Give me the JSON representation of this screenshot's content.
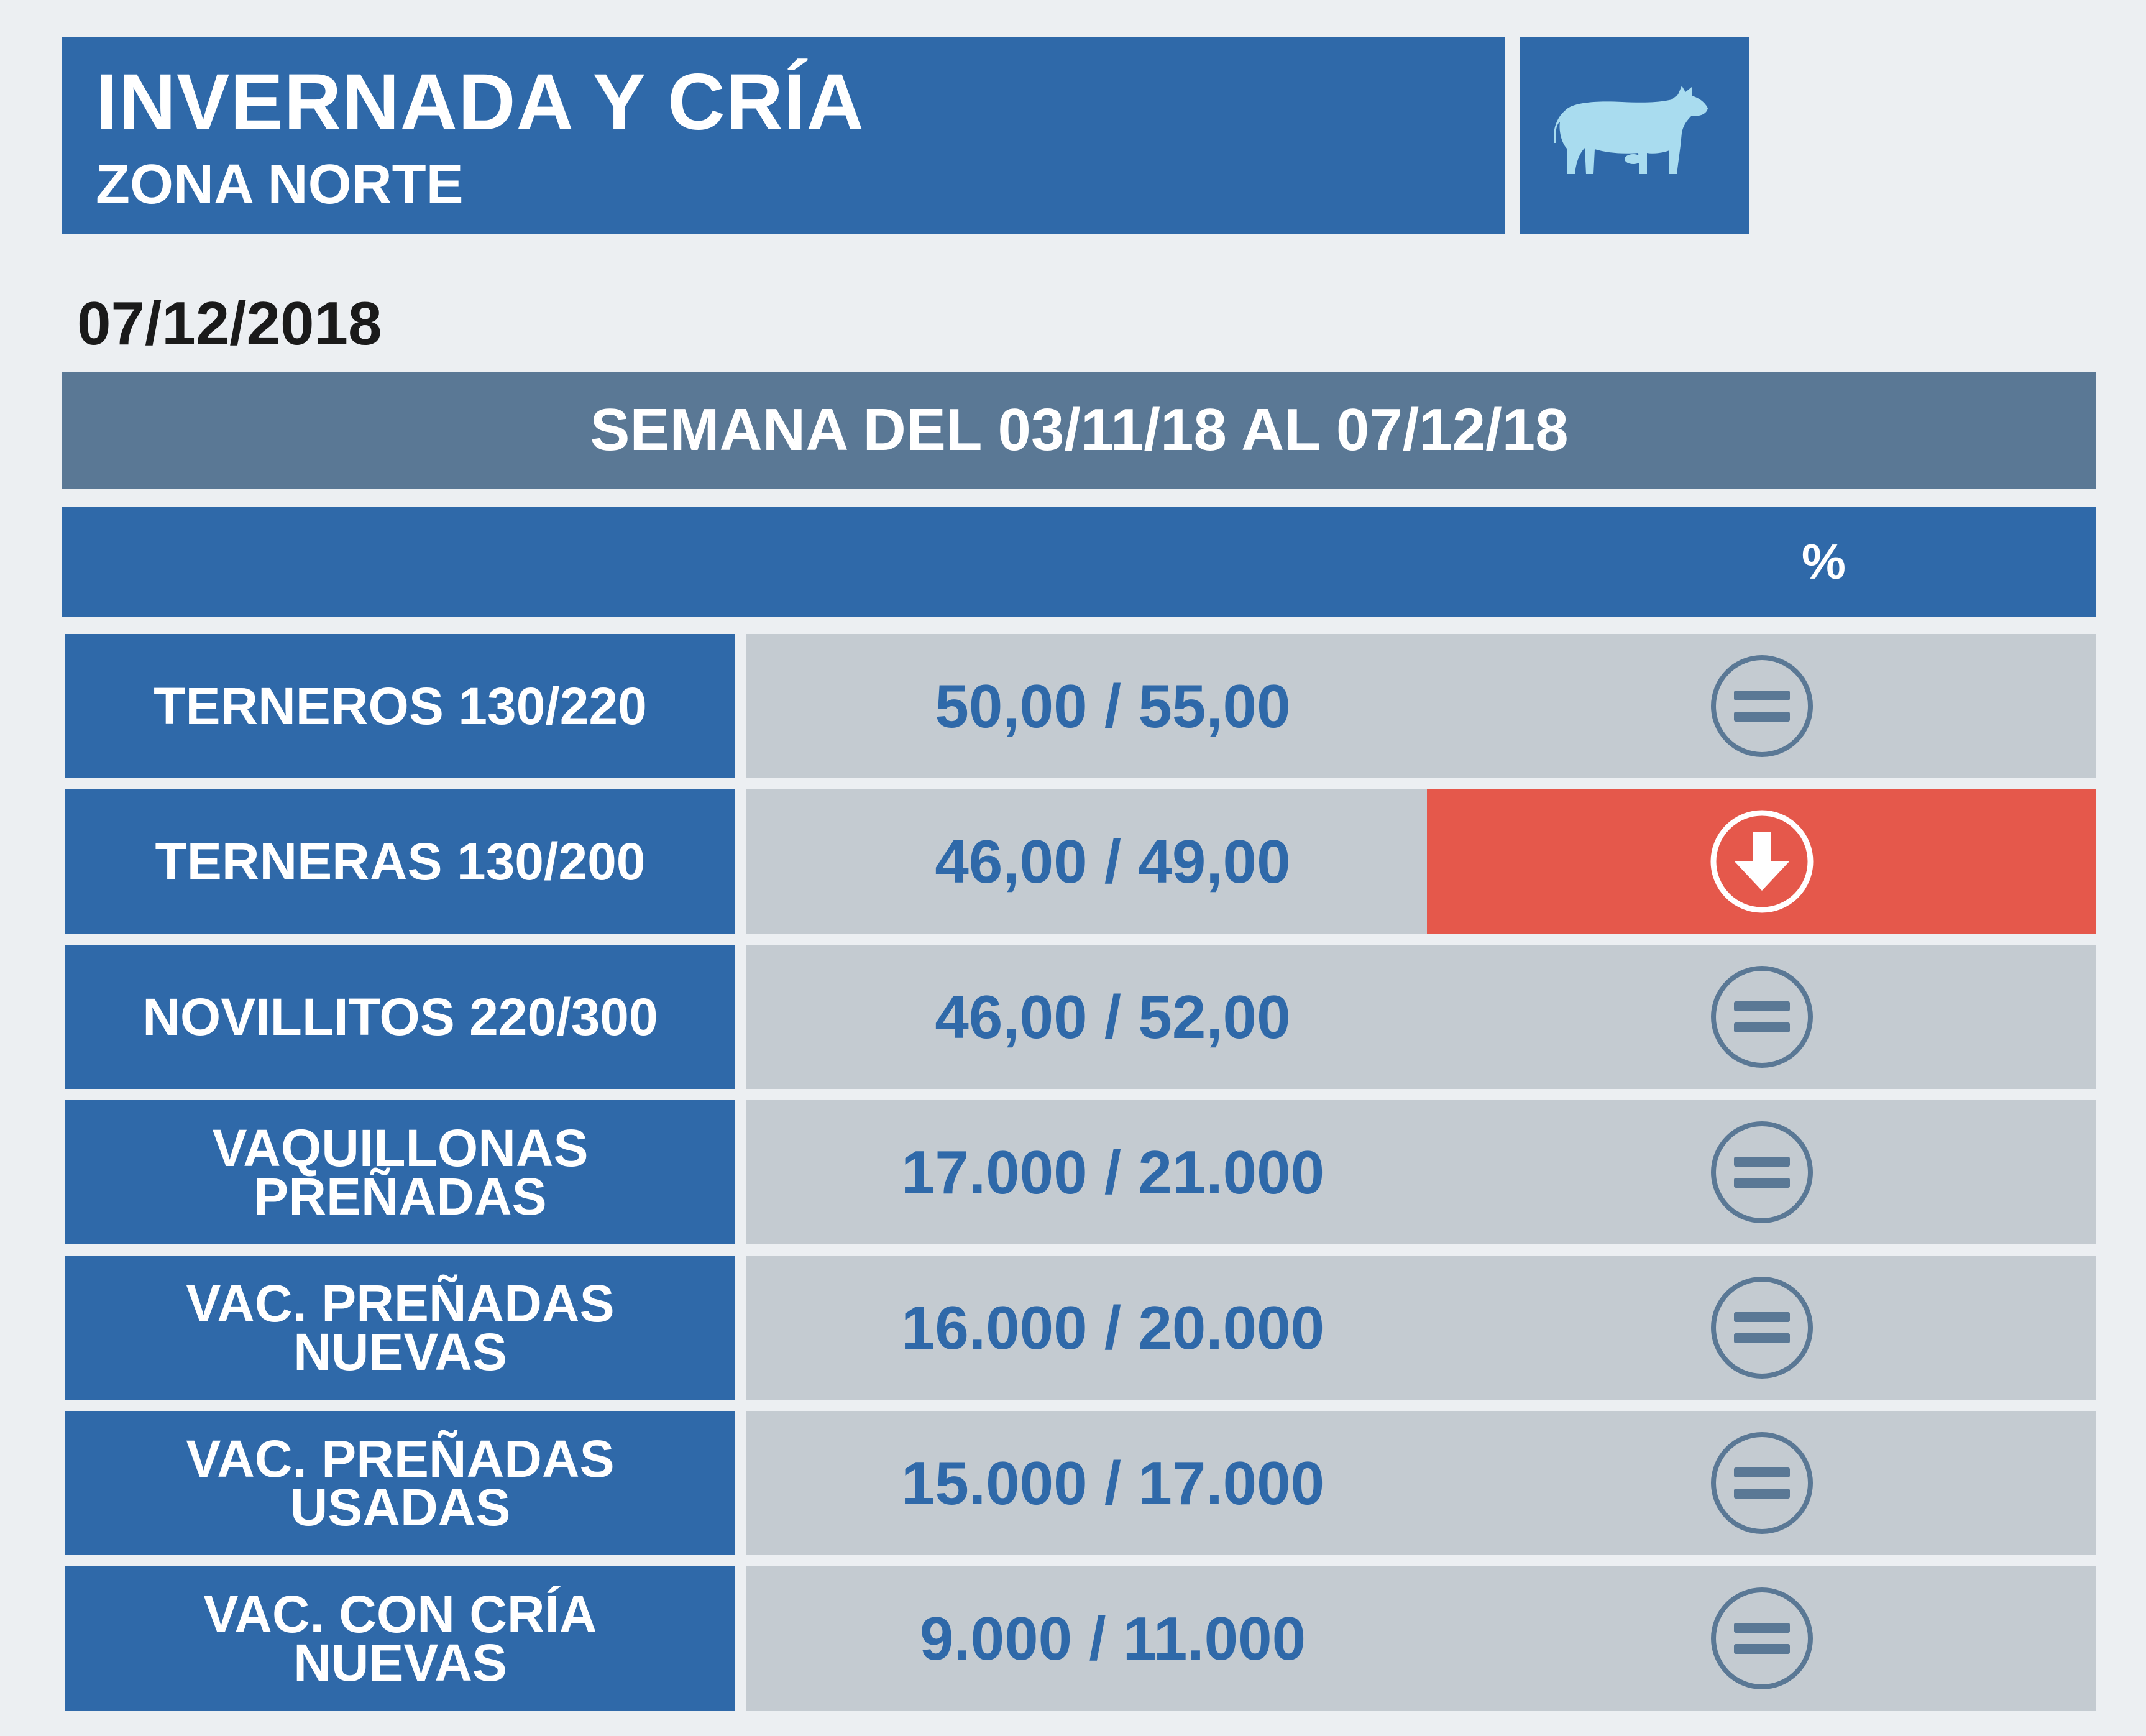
{
  "header": {
    "title": "INVERNADA Y CRÍA",
    "subtitle": "ZONA NORTE",
    "icon": "cow-icon"
  },
  "date": "07/12/2018",
  "week_label": "SEMANA DEL 03/11/18 AL 07/12/18",
  "column_header": {
    "percent": "%"
  },
  "colors": {
    "primary_blue": "#2f69a9",
    "week_bar": "#5a7895",
    "cell_gray": "#c4cbd1",
    "down_red": "#e5584b",
    "cow_icon": "#a9dcef"
  },
  "rows": [
    {
      "label_1": "TERNEROS 130/220",
      "label_2": "",
      "value": "50,00 / 55,00",
      "trend": "equal-icon"
    },
    {
      "label_1": "TERNERAS 130/200",
      "label_2": "",
      "value": "46,00 / 49,00",
      "trend": "arrow-down-icon"
    },
    {
      "label_1": "NOVILLITOS 220/300",
      "label_2": "",
      "value": "46,00 / 52,00",
      "trend": "equal-icon"
    },
    {
      "label_1": "VAQUILLONAS",
      "label_2": "PREÑADAS",
      "value": "17.000 / 21.000",
      "trend": "equal-icon"
    },
    {
      "label_1": "VAC. PREÑADAS",
      "label_2": "NUEVAS",
      "value": "16.000 / 20.000",
      "trend": "equal-icon"
    },
    {
      "label_1": "VAC. PREÑADAS",
      "label_2": "USADAS",
      "value": "15.000 / 17.000",
      "trend": "equal-icon"
    },
    {
      "label_1": "VAC. CON CRÍA",
      "label_2": "NUEVAS",
      "value": "9.000 / 11.000",
      "trend": "equal-icon"
    }
  ]
}
